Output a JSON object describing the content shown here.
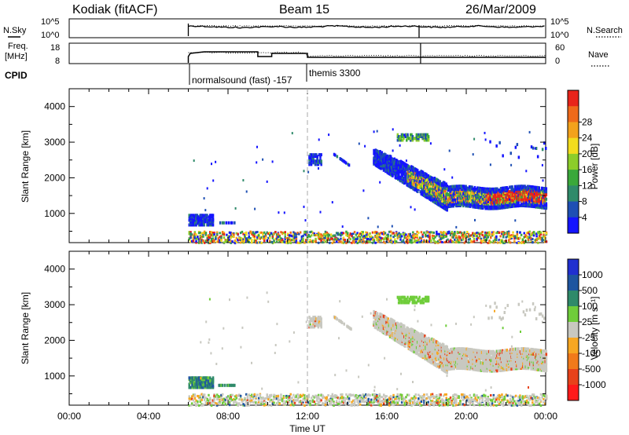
{
  "header": {
    "station": "Kodiak (fitACF)",
    "beam": "Beam 15",
    "date": "26/Mar/2009"
  },
  "noise_panel": {
    "left_label": "N.Sky",
    "left_ticks": [
      "10^5",
      "10^0"
    ],
    "right_ticks": [
      "10^5",
      "10^0"
    ],
    "right_label": "N.Search"
  },
  "freq_panel": {
    "left_label": "Freq.",
    "left_unit": "[MHz]",
    "left_ticks": [
      "18",
      "8"
    ],
    "right_ticks": [
      "60",
      "0"
    ],
    "right_label": "Nave"
  },
  "cpid": {
    "label": "CPID",
    "entries": [
      "normalsound (fast) -157",
      "themis 3300"
    ]
  },
  "chart_data": [
    {
      "type": "heatmap",
      "panel": "power",
      "ylabel": "Slant Range [km]",
      "xlabel": "",
      "xlim": [
        "00:00",
        "00:00"
      ],
      "ylim": [
        180,
        4500
      ],
      "y_ticks": [
        1000,
        2000,
        3000,
        4000
      ],
      "colorbar": {
        "label": "Power [dB]",
        "ticks": [
          "4",
          "8",
          "12",
          "16",
          "20",
          "24",
          "28"
        ],
        "colors": [
          "#1414ff",
          "#1e4fb4",
          "#2f8a6a",
          "#3aa83a",
          "#8ccd2a",
          "#f2dc1e",
          "#f3a21c",
          "#ef6a1a",
          "#e8241a"
        ]
      },
      "scatter_regions": [
        {
          "start": "06:00",
          "end": "00:00",
          "range_from": 200,
          "range_to": 500,
          "level": "mixed"
        },
        {
          "start": "06:00",
          "end": "07:00",
          "range_from": 700,
          "range_to": 1000,
          "level": "low"
        },
        {
          "start": "12:00",
          "end": "12:30",
          "range_from": 2400,
          "range_to": 2700,
          "level": "low"
        },
        {
          "start": "16:30",
          "end": "18:00",
          "range_from": 3000,
          "range_to": 3300,
          "level": "mid"
        },
        {
          "start": "15:30",
          "end": "00:00",
          "range_from": 1200,
          "range_to": 2800,
          "level": "high"
        }
      ]
    },
    {
      "type": "heatmap",
      "panel": "velocity",
      "ylabel": "Slant Range [km]",
      "xlabel": "Time UT",
      "x_ticks": [
        "00:00",
        "04:00",
        "08:00",
        "12:00",
        "16:00",
        "20:00",
        "00:00"
      ],
      "ylim": [
        180,
        4500
      ],
      "y_ticks": [
        1000,
        2000,
        3000,
        4000
      ],
      "colorbar": {
        "label": "Velocity [m s⁻¹]",
        "ticks": [
          "1000",
          "500",
          "100",
          "25",
          "-25",
          "-100",
          "-500",
          "-1000"
        ],
        "colors": [
          "#2030d0",
          "#1e55a0",
          "#2f8a6a",
          "#6fcd3a",
          "#c8c8c0",
          "#f7a722",
          "#f17a1a",
          "#e8421a",
          "#ff1a1a"
        ]
      },
      "scatter_regions": [
        {
          "start": "06:00",
          "end": "07:00",
          "range_from": 700,
          "range_to": 1000,
          "level": "positive"
        },
        {
          "start": "12:00",
          "end": "12:30",
          "range_from": 2400,
          "range_to": 2700,
          "level": "near-zero"
        },
        {
          "start": "15:30",
          "end": "00:00",
          "range_from": 1200,
          "range_to": 2800,
          "level": "near-zero"
        }
      ]
    }
  ]
}
